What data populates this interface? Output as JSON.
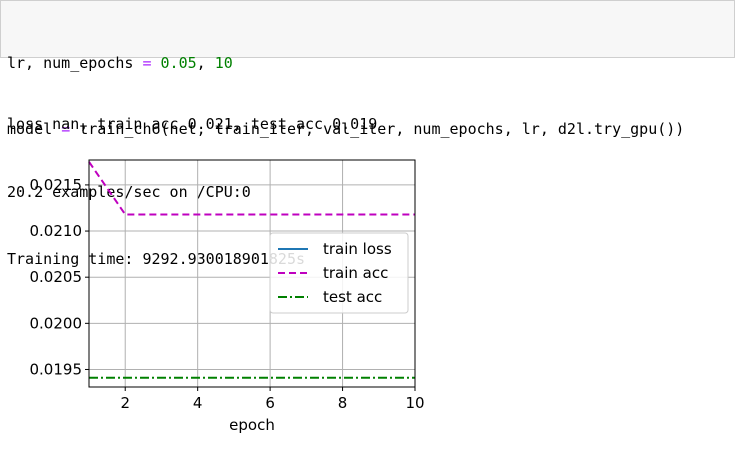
{
  "code": {
    "line1": [
      {
        "t": "lr, num_epochs ",
        "c": ""
      },
      {
        "t": "=",
        "c": "op"
      },
      {
        "t": " ",
        "c": ""
      },
      {
        "t": "0.05",
        "c": "num"
      },
      {
        "t": ", ",
        "c": ""
      },
      {
        "t": "10",
        "c": "num"
      }
    ],
    "line2": [
      {
        "t": "model ",
        "c": ""
      },
      {
        "t": "=",
        "c": "op"
      },
      {
        "t": " train_ch6(net, train_iter, val_iter, num_epochs, lr, d2l.try_gpu())",
        "c": ""
      }
    ]
  },
  "output": {
    "line1": "loss nan, train acc 0.021, test acc 0.019",
    "line2": "20.2 examples/sec on /CPU:0",
    "line3": "Training time: 9292.930018901825s"
  },
  "colors": {
    "train_loss": "#1f77b4",
    "train_acc": "#bf00bf",
    "test_acc": "#008000",
    "grid": "#b0b0b0"
  },
  "chart_data": {
    "type": "line",
    "xlabel": "epoch",
    "ylabel": "",
    "xlim": [
      1,
      10
    ],
    "ylim": [
      0.01931,
      0.02177
    ],
    "xticks": [
      2,
      4,
      6,
      8,
      10
    ],
    "yticks": [
      0.0195,
      0.02,
      0.0205,
      0.021,
      0.0215
    ],
    "ytick_labels": [
      "0.0195",
      "0.0200",
      "0.0205",
      "0.0210",
      "0.0215"
    ],
    "grid": true,
    "legend_position": "center-right",
    "series": [
      {
        "name": "train loss",
        "style": "solid",
        "color_key": "train_loss",
        "x": [],
        "y": []
      },
      {
        "name": "train acc",
        "style": "dashed",
        "color_key": "train_acc",
        "x": [
          1,
          2,
          3,
          4,
          5,
          6,
          7,
          8,
          9,
          10
        ],
        "y": [
          0.02175,
          0.02118,
          0.02118,
          0.02118,
          0.02118,
          0.02118,
          0.02118,
          0.02118,
          0.02118,
          0.02118
        ]
      },
      {
        "name": "test acc",
        "style": "dashdot",
        "color_key": "test_acc",
        "x": [
          1,
          2,
          3,
          4,
          5,
          6,
          7,
          8,
          9,
          10
        ],
        "y": [
          0.01941,
          0.01941,
          0.01941,
          0.01941,
          0.01941,
          0.01941,
          0.01941,
          0.01941,
          0.01941,
          0.01941
        ]
      }
    ]
  }
}
